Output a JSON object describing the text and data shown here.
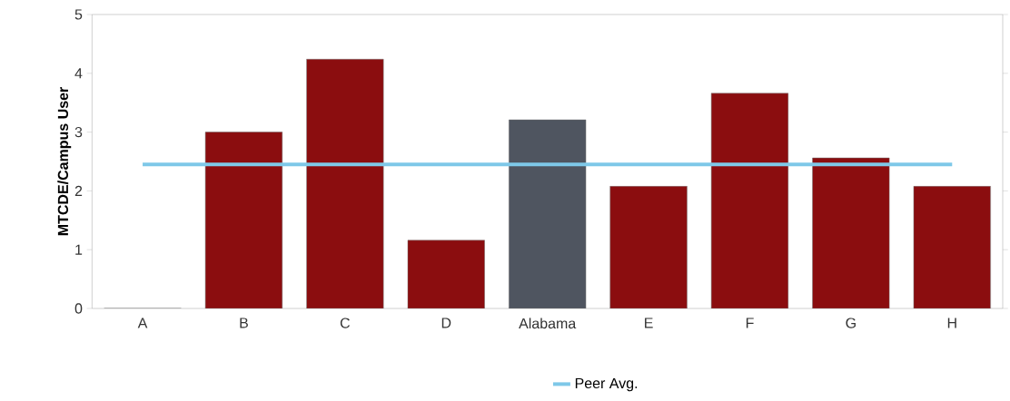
{
  "chart_data": {
    "type": "bar",
    "ylabel": "MTCDE/Campus User",
    "categories": [
      "A",
      "B",
      "C",
      "D",
      "Alabama",
      "E",
      "F",
      "G",
      "H"
    ],
    "series": [
      {
        "colors": [
          "#8b0d0f",
          "#8b0d0f",
          "#8b0d0f",
          "#8b0d0f",
          "#4f5560",
          "#8b0d0f",
          "#8b0d0f",
          "#8b0d0f",
          "#8b0d0f"
        ],
        "values": [
          0,
          3.0,
          4.24,
          1.16,
          3.21,
          2.08,
          3.66,
          2.56,
          2.08
        ]
      },
      {
        "type": "line",
        "name": "Peer Avg.",
        "color": "#7ec8e8",
        "values": [
          2.45,
          2.45,
          2.45,
          2.45,
          2.45,
          2.45,
          2.45,
          2.45,
          2.45
        ]
      }
    ],
    "ylim": [
      0,
      5
    ],
    "yticks": [
      0,
      1,
      2,
      3,
      4,
      5
    ],
    "legend": "bottom"
  }
}
